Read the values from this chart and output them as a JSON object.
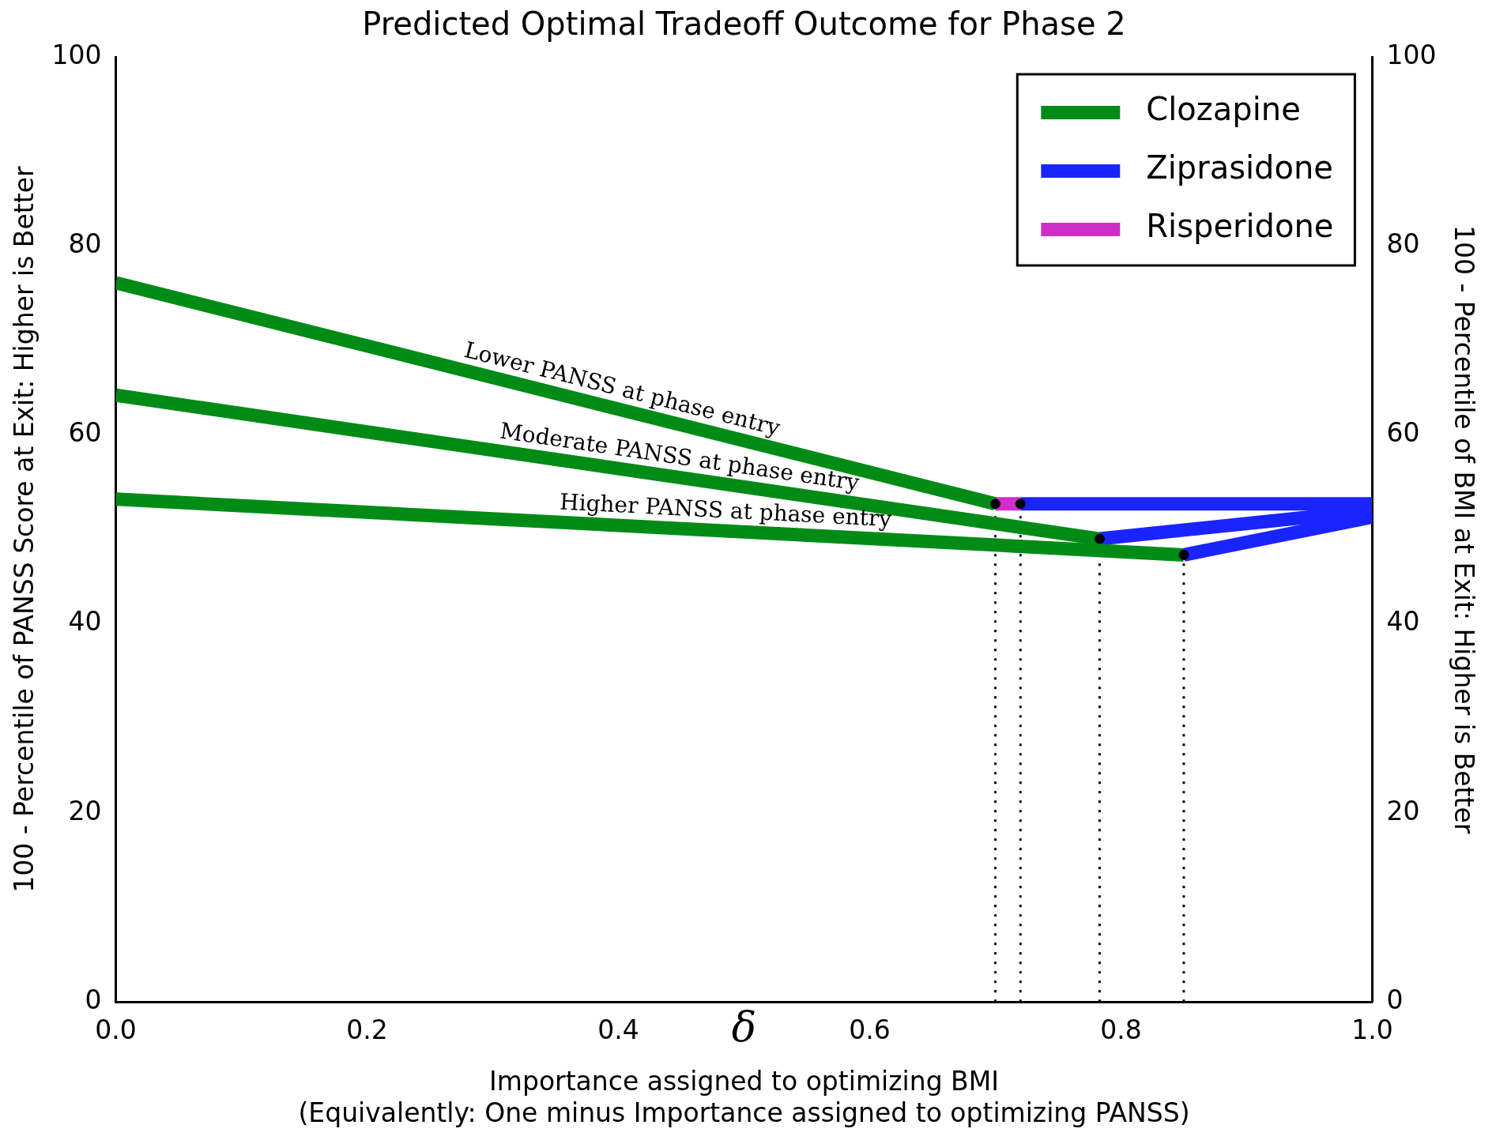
{
  "chart_data": {
    "type": "line",
    "title": "Predicted Optimal Tradeoff Outcome for Phase 2",
    "xlabel": "Importance assigned to optimizing BMI\n(Equivalently: One minus Importance assigned to optimizing PANSS)",
    "ylabel": "100 - Percentile of PANSS Score at Exit: Higher is Better",
    "y2label": "100 - Percentile of BMI at Exit: Higher is Better",
    "series": [
      {
        "name": "Clozapine",
        "color": "#008b17",
        "x": [
          0,
          0.7
        ],
        "values": [
          76.1,
          52.7
        ]
      },
      {
        "color": "#008b17",
        "x": [
          0,
          0.783
        ],
        "values": [
          64.2,
          49.0
        ]
      },
      {
        "color": "#008b17",
        "x": [
          0,
          0.85
        ],
        "values": [
          53.2,
          47.3
        ]
      },
      {
        "name": "Ziprasidone",
        "color": "#1a24ff",
        "x": [
          0.72,
          1.0
        ],
        "values": [
          52.7,
          52.7
        ]
      },
      {
        "color": "#1a24ff",
        "x": [
          0.783,
          1.0
        ],
        "values": [
          49.0,
          52.0
        ]
      },
      {
        "color": "#1a24ff",
        "x": [
          0.85,
          1.0
        ],
        "values": [
          47.3,
          51.3
        ]
      },
      {
        "name": "Risperidone",
        "color": "#d02ec8",
        "x": [
          0.7,
          0.72
        ],
        "values": [
          52.7,
          52.7
        ]
      },
      {
        "type": "line",
        "color": "#000000",
        "line_style": "dotted",
        "marker": "none",
        "x": [
          0.7,
          0.7
        ],
        "values": [
          0,
          52.7
        ]
      },
      {
        "type": "line",
        "color": "#000000",
        "line_style": "dotted",
        "marker": "none",
        "x": [
          0.72,
          0.72
        ],
        "values": [
          0,
          52.7
        ]
      },
      {
        "type": "line",
        "color": "#000000",
        "line_style": "dotted",
        "marker": "none",
        "x": [
          0.783,
          0.783
        ],
        "values": [
          0,
          49.0
        ]
      },
      {
        "type": "line",
        "color": "#000000",
        "line_style": "dotted",
        "marker": "none",
        "x": [
          0.85,
          0.85
        ],
        "values": [
          0,
          47.3
        ]
      },
      {
        "type": "scatter",
        "color": "#000000",
        "marker": "circle",
        "x": [
          0.7,
          0.72,
          0.783,
          0.85
        ],
        "values": [
          52.7,
          52.7,
          49.0,
          47.3
        ]
      }
    ],
    "xlim": [
      0,
      1
    ],
    "xticks": [
      {
        "value": 0,
        "label": "0.0"
      },
      {
        "value": 0.2,
        "label": "0.2"
      },
      {
        "value": 0.4,
        "label": "0.4"
      },
      {
        "value": 0.6,
        "label": "0.6"
      },
      {
        "value": 0.8,
        "label": "0.8"
      },
      {
        "value": 1,
        "label": "1.0"
      }
    ],
    "ylim": [
      0,
      100
    ],
    "yticks": [
      0,
      20,
      40,
      60,
      80,
      100
    ],
    "y2lim": [
      0,
      100
    ],
    "y2ticks": [
      0,
      20,
      40,
      60,
      80,
      100
    ],
    "annotations": [
      "Lower PANSS at phase entry",
      "Moderate PANSS at phase entry",
      "Higher PANSS at phase entry",
      "δ"
    ],
    "legend": "top right",
    "grid": false,
    "line_style": "solid",
    "marker": "none"
  }
}
